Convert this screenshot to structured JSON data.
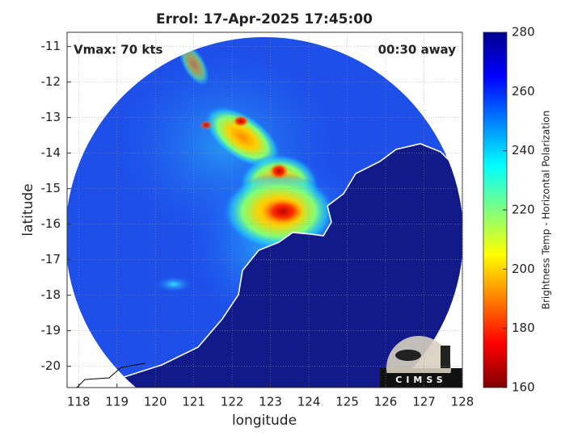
{
  "chart_data": {
    "type": "map",
    "title": "Errol: 17-Apr-2025 17:45:00",
    "xlabel": "longitude",
    "ylabel": "latitude",
    "xlim": [
      117.7,
      128
    ],
    "ylim": [
      -20.6,
      -10.6
    ],
    "xticks": [
      118,
      119,
      120,
      121,
      122,
      123,
      124,
      125,
      126,
      127,
      128
    ],
    "yticks": [
      -11,
      -12,
      -13,
      -14,
      -15,
      -16,
      -17,
      -18,
      -19,
      -20
    ],
    "grid": true,
    "annotations": [
      "Vmax: 70 kts",
      "00:30 away"
    ],
    "logo": "CIMSS",
    "colorbar": {
      "label": "Brightness Temp - Horizontal Polarization",
      "lim": [
        160,
        280
      ],
      "ticks": [
        160,
        180,
        200,
        220,
        240,
        260,
        280
      ],
      "colormap": "jet_r"
    }
  }
}
